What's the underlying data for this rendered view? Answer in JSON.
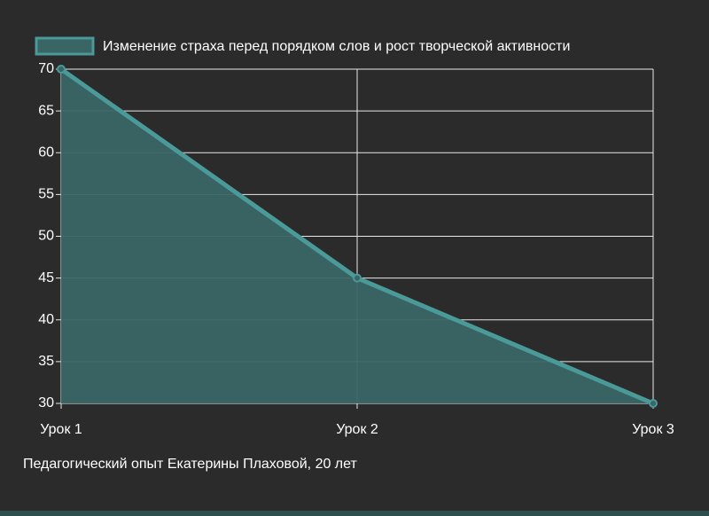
{
  "chart_data": {
    "type": "area",
    "categories": [
      "Урок 1",
      "Урок 2",
      "Урок 3"
    ],
    "series": [
      {
        "name": "Изменение страха перед порядком слов и рост творческой активности",
        "color": "#4a9a9a",
        "fill": "#3a6565",
        "values": [
          70,
          45,
          30
        ]
      }
    ],
    "ylim": [
      30,
      70
    ],
    "yticks": [
      30,
      35,
      40,
      45,
      50,
      55,
      60,
      65,
      70
    ],
    "grid": true,
    "caption": "Педагогический опыт Екатерины Плаховой, 20 лет"
  }
}
